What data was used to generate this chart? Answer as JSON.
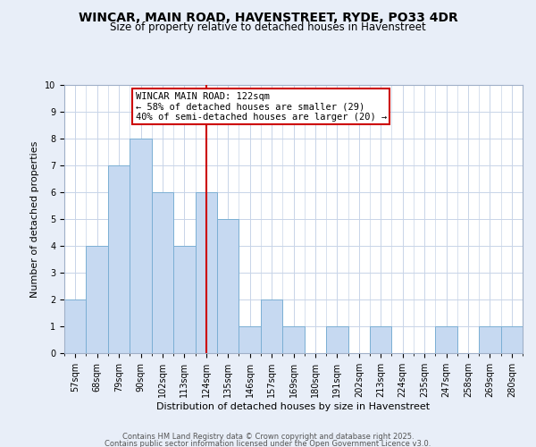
{
  "title": "WINCAR, MAIN ROAD, HAVENSTREET, RYDE, PO33 4DR",
  "subtitle": "Size of property relative to detached houses in Havenstreet",
  "xlabel": "Distribution of detached houses by size in Havenstreet",
  "ylabel": "Number of detached properties",
  "bins": [
    "57sqm",
    "68sqm",
    "79sqm",
    "90sqm",
    "102sqm",
    "113sqm",
    "124sqm",
    "135sqm",
    "146sqm",
    "157sqm",
    "169sqm",
    "180sqm",
    "191sqm",
    "202sqm",
    "213sqm",
    "224sqm",
    "235sqm",
    "247sqm",
    "258sqm",
    "269sqm",
    "280sqm"
  ],
  "counts": [
    2,
    4,
    7,
    8,
    6,
    4,
    6,
    5,
    1,
    2,
    1,
    0,
    1,
    0,
    1,
    0,
    0,
    1,
    0,
    1,
    1
  ],
  "bar_color": "#c6d9f1",
  "bar_edge_color": "#7bafd4",
  "vline_x": 6,
  "vline_color": "#cc0000",
  "annotation_text": "WINCAR MAIN ROAD: 122sqm\n← 58% of detached houses are smaller (29)\n40% of semi-detached houses are larger (20) →",
  "annotation_box_color": "#ffffff",
  "annotation_box_edge_color": "#cc0000",
  "ylim": [
    0,
    10
  ],
  "yticks": [
    0,
    1,
    2,
    3,
    4,
    5,
    6,
    7,
    8,
    9,
    10
  ],
  "background_color": "#e8eef8",
  "plot_background": "#ffffff",
  "grid_color": "#c8d4e8",
  "footer_line1": "Contains HM Land Registry data © Crown copyright and database right 2025.",
  "footer_line2": "Contains public sector information licensed under the Open Government Licence v3.0.",
  "title_fontsize": 10,
  "subtitle_fontsize": 8.5,
  "axis_label_fontsize": 8,
  "tick_fontsize": 7,
  "footer_fontsize": 6,
  "annot_fontsize": 7.5
}
